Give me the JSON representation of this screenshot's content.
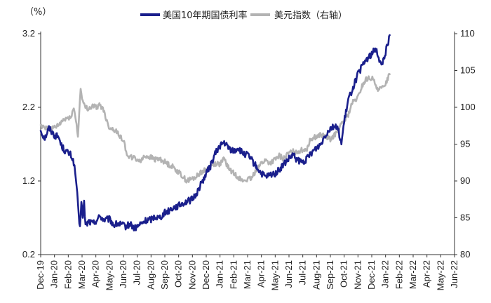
{
  "chart_data": {
    "type": "line",
    "left_axis_unit": "（%）",
    "x_tick_labels": [
      "Dec-19",
      "Jan-20",
      "Feb-20",
      "Mar-20",
      "Apr-20",
      "May-20",
      "Jun-20",
      "Jul-20",
      "Aug-20",
      "Sep-20",
      "Oct-20",
      "Nov-20",
      "Dec-20",
      "Jan-21",
      "Feb-21",
      "Mar-21",
      "Apr-21",
      "May-21",
      "Jun-21",
      "Jul-21",
      "Aug-21",
      "Sep-21",
      "Oct-21",
      "Nov-21",
      "Dec-21",
      "Jan-22",
      "Feb-22",
      "Mar-22",
      "Apr-22",
      "May-22",
      "Jun-22"
    ],
    "y_left": {
      "ticks": [
        "0.2",
        "1.2",
        "2.2",
        "3.2"
      ],
      "range": [
        0.2,
        3.2
      ]
    },
    "y_right": {
      "ticks": [
        "80",
        "85",
        "90",
        "95",
        "100",
        "105",
        "110"
      ],
      "range": [
        80,
        110
      ]
    },
    "series": [
      {
        "name": "美国10年期国债利率",
        "axis": "left",
        "color": "#1a1f8c",
        "points": [
          [
            0.0,
            1.88
          ],
          [
            0.3,
            1.78
          ],
          [
            0.6,
            1.92
          ],
          [
            1.0,
            1.82
          ],
          [
            1.3,
            1.8
          ],
          [
            1.5,
            1.68
          ],
          [
            1.8,
            1.6
          ],
          [
            2.0,
            1.58
          ],
          [
            2.2,
            1.55
          ],
          [
            2.4,
            1.45
          ],
          [
            2.6,
            1.15
          ],
          [
            2.75,
            0.72
          ],
          [
            2.85,
            0.55
          ],
          [
            2.95,
            0.95
          ],
          [
            3.05,
            0.7
          ],
          [
            3.15,
            0.9
          ],
          [
            3.25,
            0.6
          ],
          [
            3.5,
            0.65
          ],
          [
            3.8,
            0.62
          ],
          [
            4.0,
            0.66
          ],
          [
            4.3,
            0.72
          ],
          [
            4.6,
            0.67
          ],
          [
            5.0,
            0.68
          ],
          [
            5.3,
            0.6
          ],
          [
            5.6,
            0.62
          ],
          [
            5.9,
            0.6
          ],
          [
            6.2,
            0.58
          ],
          [
            6.5,
            0.62
          ],
          [
            6.8,
            0.55
          ],
          [
            7.0,
            0.58
          ],
          [
            7.3,
            0.62
          ],
          [
            7.6,
            0.66
          ],
          [
            8.0,
            0.68
          ],
          [
            8.3,
            0.72
          ],
          [
            8.6,
            0.7
          ],
          [
            9.0,
            0.77
          ],
          [
            9.3,
            0.8
          ],
          [
            9.6,
            0.84
          ],
          [
            10.0,
            0.86
          ],
          [
            10.3,
            0.9
          ],
          [
            10.6,
            0.92
          ],
          [
            11.0,
            0.95
          ],
          [
            11.3,
            1.03
          ],
          [
            11.6,
            1.15
          ],
          [
            12.0,
            1.3
          ],
          [
            12.3,
            1.4
          ],
          [
            12.6,
            1.55
          ],
          [
            13.0,
            1.68
          ],
          [
            13.3,
            1.72
          ],
          [
            13.6,
            1.65
          ],
          [
            14.0,
            1.6
          ],
          [
            14.3,
            1.65
          ],
          [
            14.6,
            1.58
          ],
          [
            15.0,
            1.55
          ],
          [
            15.3,
            1.48
          ],
          [
            15.6,
            1.4
          ],
          [
            16.0,
            1.3
          ],
          [
            16.3,
            1.25
          ],
          [
            16.6,
            1.28
          ],
          [
            17.0,
            1.3
          ],
          [
            17.3,
            1.35
          ],
          [
            17.6,
            1.42
          ],
          [
            18.0,
            1.5
          ],
          [
            18.3,
            1.55
          ],
          [
            18.6,
            1.48
          ],
          [
            19.0,
            1.45
          ],
          [
            19.3,
            1.5
          ],
          [
            19.6,
            1.58
          ],
          [
            20.0,
            1.65
          ],
          [
            20.3,
            1.7
          ],
          [
            20.6,
            1.82
          ],
          [
            21.0,
            1.92
          ],
          [
            21.3,
            1.95
          ],
          [
            21.6,
            1.88
          ],
          [
            21.8,
            1.7
          ],
          [
            22.0,
            2.0
          ],
          [
            22.3,
            2.3
          ],
          [
            22.6,
            2.45
          ],
          [
            23.0,
            2.65
          ],
          [
            23.3,
            2.75
          ],
          [
            23.6,
            2.85
          ],
          [
            24.0,
            2.92
          ],
          [
            24.3,
            3.0
          ],
          [
            24.5,
            2.88
          ],
          [
            24.7,
            2.75
          ],
          [
            25.0,
            2.95
          ],
          [
            25.2,
            3.1
          ],
          [
            25.3,
            3.18
          ]
        ]
      },
      {
        "name": "美元指数（右轴）",
        "axis": "right",
        "color": "#b3b3b3",
        "points": [
          [
            0.0,
            97.6
          ],
          [
            0.3,
            97.3
          ],
          [
            0.6,
            97.0
          ],
          [
            1.0,
            97.2
          ],
          [
            1.3,
            97.5
          ],
          [
            1.6,
            98.2
          ],
          [
            2.0,
            98.6
          ],
          [
            2.2,
            98.8
          ],
          [
            2.4,
            99.8
          ],
          [
            2.6,
            97.8
          ],
          [
            2.7,
            95.8
          ],
          [
            2.8,
            99.5
          ],
          [
            2.9,
            102.8
          ],
          [
            3.0,
            101.0
          ],
          [
            3.2,
            100.0
          ],
          [
            3.5,
            99.8
          ],
          [
            3.8,
            100.2
          ],
          [
            4.0,
            100.0
          ],
          [
            4.3,
            100.3
          ],
          [
            4.6,
            99.5
          ],
          [
            4.8,
            98.0
          ],
          [
            5.0,
            97.2
          ],
          [
            5.3,
            97.0
          ],
          [
            5.6,
            96.5
          ],
          [
            6.0,
            95.5
          ],
          [
            6.2,
            94.0
          ],
          [
            6.4,
            93.3
          ],
          [
            6.7,
            93.2
          ],
          [
            7.0,
            92.8
          ],
          [
            7.3,
            92.9
          ],
          [
            7.6,
            93.4
          ],
          [
            8.0,
            93.2
          ],
          [
            8.3,
            92.9
          ],
          [
            8.6,
            93.0
          ],
          [
            9.0,
            92.6
          ],
          [
            9.3,
            92.2
          ],
          [
            9.6,
            91.9
          ],
          [
            10.0,
            91.2
          ],
          [
            10.3,
            90.6
          ],
          [
            10.6,
            90.0
          ],
          [
            11.0,
            90.3
          ],
          [
            11.3,
            90.6
          ],
          [
            11.6,
            91.2
          ],
          [
            12.0,
            91.5
          ],
          [
            12.3,
            91.9
          ],
          [
            12.6,
            92.4
          ],
          [
            13.0,
            92.3
          ],
          [
            13.3,
            93.0
          ],
          [
            13.6,
            91.8
          ],
          [
            14.0,
            91.0
          ],
          [
            14.3,
            90.6
          ],
          [
            14.6,
            90.0
          ],
          [
            15.0,
            90.2
          ],
          [
            15.3,
            90.3
          ],
          [
            15.6,
            91.5
          ],
          [
            16.0,
            92.4
          ],
          [
            16.3,
            92.8
          ],
          [
            16.6,
            92.4
          ],
          [
            17.0,
            92.9
          ],
          [
            17.3,
            93.4
          ],
          [
            17.6,
            93.0
          ],
          [
            18.0,
            93.8
          ],
          [
            18.3,
            94.0
          ],
          [
            18.6,
            94.0
          ],
          [
            19.0,
            94.2
          ],
          [
            19.3,
            94.4
          ],
          [
            19.6,
            95.8
          ],
          [
            20.0,
            96.0
          ],
          [
            20.3,
            96.3
          ],
          [
            20.6,
            96.0
          ],
          [
            21.0,
            95.7
          ],
          [
            21.3,
            96.2
          ],
          [
            21.6,
            97.0
          ],
          [
            22.0,
            98.2
          ],
          [
            22.3,
            99.0
          ],
          [
            22.6,
            100.6
          ],
          [
            23.0,
            101.3
          ],
          [
            23.3,
            102.9
          ],
          [
            23.6,
            103.8
          ],
          [
            24.0,
            104.0
          ],
          [
            24.3,
            103.0
          ],
          [
            24.5,
            102.4
          ],
          [
            24.8,
            102.6
          ],
          [
            25.0,
            103.3
          ],
          [
            25.3,
            104.5
          ]
        ]
      }
    ]
  }
}
